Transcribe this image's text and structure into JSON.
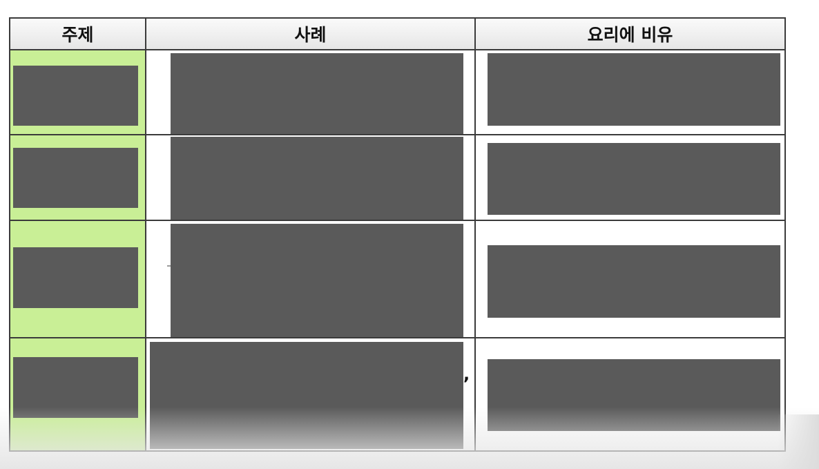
{
  "table": {
    "headers": {
      "topic": "주제",
      "example": "사례",
      "cooking_analogy": "요리에 비유"
    },
    "rows": [
      {
        "topic": "",
        "example": "",
        "cooking_analogy": ""
      },
      {
        "topic": "",
        "example": "",
        "cooking_analogy": ""
      },
      {
        "topic": "",
        "example": "",
        "cooking_analogy": ""
      },
      {
        "topic": "",
        "example": ",",
        "cooking_analogy": ""
      }
    ]
  },
  "colors": {
    "topic_cell_bg": "#c9ef96",
    "redaction": "#5a5a5a",
    "border": "#3a3a3a",
    "header_bg": "#eeeeee"
  }
}
